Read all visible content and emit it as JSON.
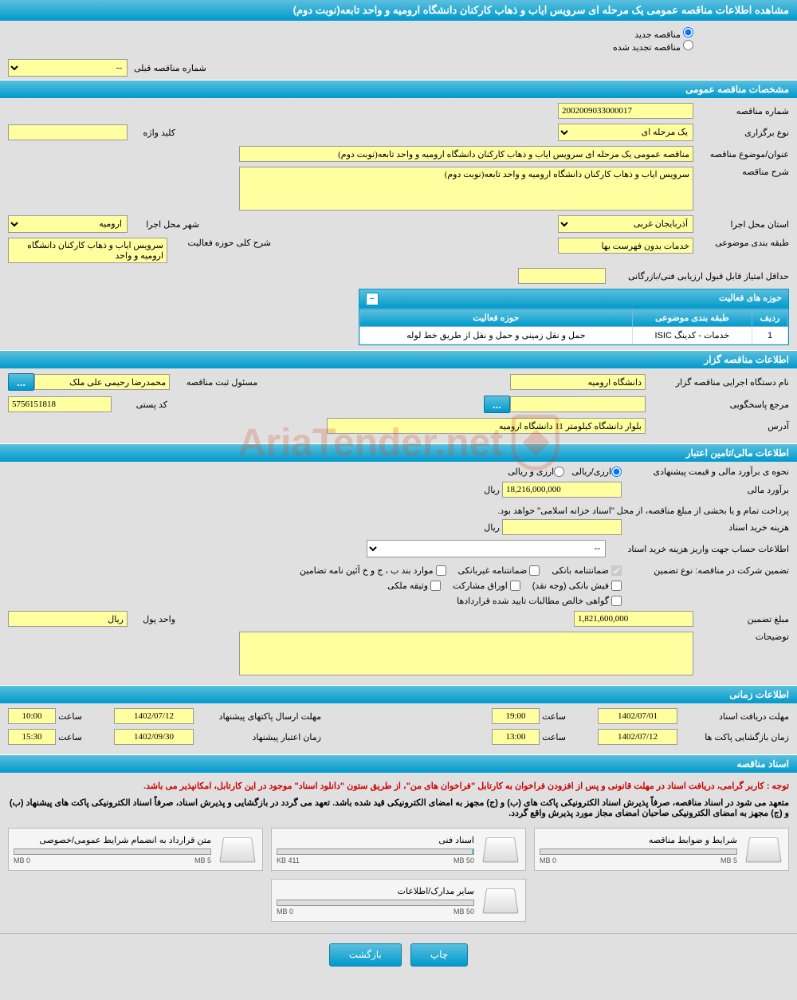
{
  "page_title": "مشاهده اطلاعات مناقصه عمومی یک مرحله ای سرویس ایاب و ذهاب کارکنان دانشگاه ارومیه و واحد تابعه(نوبت دوم)",
  "radios": {
    "new_label": "مناقصه جدید",
    "renewed_label": "مناقصه تجدید شده"
  },
  "prev_number": {
    "label": "شماره مناقصه قبلی",
    "value": "--"
  },
  "sections": {
    "general": "مشخصات مناقصه عمومی",
    "organizer": "اطلاعات مناقصه گزار",
    "financial": "اطلاعات مالی/تامین اعتبار",
    "timing": "اطلاعات زمانی",
    "documents": "اسناد مناقصه"
  },
  "general": {
    "tender_no_label": "شماره مناقصه",
    "tender_no": "2002009033000017",
    "type_label": "نوع برگزاری",
    "type_value": "یک مرحله ای",
    "keyword_label": "کلید واژه",
    "keyword": "",
    "subject_label": "عنوان/موضوع مناقصه",
    "subject": "مناقصه عمومی یک مرحله ای سرویس ایاب و ذهاب کارکنان دانشگاه ارومیه و واحد تابعه(نوبت دوم)",
    "desc_label": "شرح مناقصه",
    "desc": "سرویس ایاب و ذهاب کارکنان دانشگاه ارومیه و واحد تابعه(نوبت دوم)",
    "province_label": "استان محل اجرا",
    "province": "آذربایجان غربی",
    "city_label": "شهر محل اجرا",
    "city": "ارومیه",
    "category_label": "طبقه بندی موضوعی",
    "category": "خدمات بدون فهرست بها",
    "scope_label": "شرح کلی حوزه فعالیت",
    "scope": "سرویس ایاب و ذهاب کارکنان دانشگاه ارومیه و واحد",
    "min_score_label": "حداقل امتیاز قابل قبول ارزیابی فنی/بازرگانی",
    "min_score": ""
  },
  "activity_table": {
    "title": "حوزه های فعالیت",
    "headers": {
      "row": "ردیف",
      "category": "طبقه بندی موضوعی",
      "activity": "حوزه فعالیت"
    },
    "rows": [
      {
        "row": "1",
        "category": "خدمات - کدینگ ISIC",
        "activity": "حمل و نقل زمینی و حمل و نقل از طریق خط لوله"
      }
    ]
  },
  "organizer": {
    "agency_label": "نام دستگاه اجرایی مناقصه گزار",
    "agency": "دانشگاه ارومیه",
    "registrar_label": "مسئول ثبت مناقصه",
    "registrar": "محمدرضا رحیمی علی ملک",
    "respondent_label": "مرجع پاسخگویی",
    "respondent": "",
    "postal_label": "کد پستی",
    "postal": "5756151818",
    "address_label": "آدرس",
    "address": "بلوار دانشگاه کیلومتر 11 دانشگاه ارومیه"
  },
  "financial": {
    "method_label": "نحوه ی برآورد مالی و قیمت پیشنهادی",
    "radio1": "ارزی/ریالی",
    "radio2": "ارزی و ریالی",
    "estimate_label": "برآورد مالی",
    "estimate": "18,216,000,000",
    "currency": "ریال",
    "payment_note": "پرداخت تمام و یا بخشی از مبلغ مناقصه، از محل \"اسناد خزانه اسلامی\" خواهد بود.",
    "doc_cost_label": "هزینه خرید اسناد",
    "doc_cost": "",
    "account_label": "اطلاعات حساب جهت واریز هزینه خرید اسناد",
    "account_value": "--",
    "guarantee_type_label": "تضمین شرکت در مناقصه:   نوع تضمین",
    "guarantee_bank": "ضمانتنامه بانکی",
    "guarantee_nonbank": "ضمانتنامه غیربانکی",
    "guarantee_items": "موارد بند ب ، ج و خ آئین نامه تضامین",
    "guarantee_cash": "فیش بانکی (وجه نقد)",
    "guarantee_bonds": "اوراق مشارکت",
    "guarantee_property": "وثیقه ملکی",
    "guarantee_cert": "گواهی خالص مطالبات تایید شده قراردادها",
    "guarantee_amount_label": "مبلغ تضمین",
    "guarantee_amount": "1,821,600,000",
    "unit_label": "واحد پول",
    "unit": "ریال",
    "notes_label": "توضیحات",
    "notes": ""
  },
  "timing": {
    "receive_label": "مهلت دریافت اسناد",
    "receive_date": "1402/07/01",
    "receive_time": "19:00",
    "send_label": "مهلت ارسال پاکتهای پیشنهاد",
    "send_date": "1402/07/12",
    "send_time": "10:00",
    "open_label": "زمان بازگشایی پاکت ها",
    "open_date": "1402/07/12",
    "open_time": "13:00",
    "validity_label": "زمان اعتبار پیشنهاد",
    "validity_date": "1402/09/30",
    "validity_time": "15:30",
    "hour_label": "ساعت"
  },
  "documents": {
    "note1": "توجه : کاربر گرامی، دریافت اسناد در مهلت قانونی و پس از افزودن فراخوان به کارتابل \"فراخوان های من\"، از طریق ستون \"دانلود اسناد\" موجود در این کارتابل، امکانپذیر می باشد.",
    "note2": "متعهد می شود در اسناد مناقصه، صرفاً پذیرش اسناد الکترونیکی پاکت های (ب) و (ج) مجهز به امضای الکترونیکی قید شده باشد. تعهد می گردد در بازگشایی و پذیرش اسناد، صرفاً اسناد الکترونیکی پاکت های پیشنهاد (ب) و (ج) مجهز به امضای الکترونیکی صاحبان امضای مجاز مورد پذیرش واقع گردد.",
    "files": [
      {
        "title": "شرایط و ضوابط مناقصه",
        "used": "0 MB",
        "total": "5 MB",
        "pct": 0
      },
      {
        "title": "اسناد فنی",
        "used": "411 KB",
        "total": "50 MB",
        "pct": 1
      },
      {
        "title": "متن قرارداد به انضمام شرایط عمومی/خصوصی",
        "used": "0 MB",
        "total": "5 MB",
        "pct": 0
      },
      {
        "title": "سایر مدارک/اطلاعات",
        "used": "0 MB",
        "total": "50 MB",
        "pct": 0
      }
    ]
  },
  "buttons": {
    "print": "چاپ",
    "back": "بازگشت",
    "dots": "..."
  },
  "colors": {
    "header_grad_top": "#5bc0de",
    "header_grad_bottom": "#0099cc",
    "yellow_bg": "#ffffa0",
    "page_bg": "#e0e0e0",
    "red": "#cc0000"
  }
}
